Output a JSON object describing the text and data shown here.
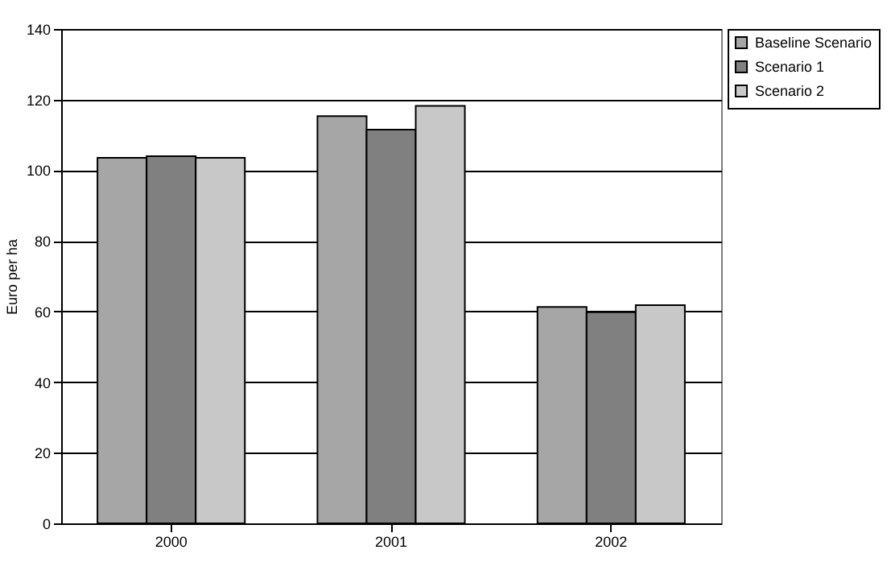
{
  "chart_data": {
    "type": "bar",
    "ylabel": "Euro per ha",
    "categories": [
      "2000",
      "2001",
      "2002"
    ],
    "series": [
      {
        "name": "Baseline Scenario",
        "color": "#a6a6a6",
        "values": [
          103.5,
          115.3,
          61.3
        ]
      },
      {
        "name": "Scenario 1",
        "color": "#808080",
        "values": [
          104,
          111.5,
          59.8
        ]
      },
      {
        "name": "Scenario 2",
        "color": "#c8c8c8",
        "values": [
          103.5,
          118.2,
          61.8
        ]
      }
    ],
    "ylim": [
      0,
      140
    ],
    "yticks": [
      0,
      20,
      40,
      60,
      80,
      100,
      120,
      140
    ],
    "grid": "y",
    "legend": "top right"
  }
}
